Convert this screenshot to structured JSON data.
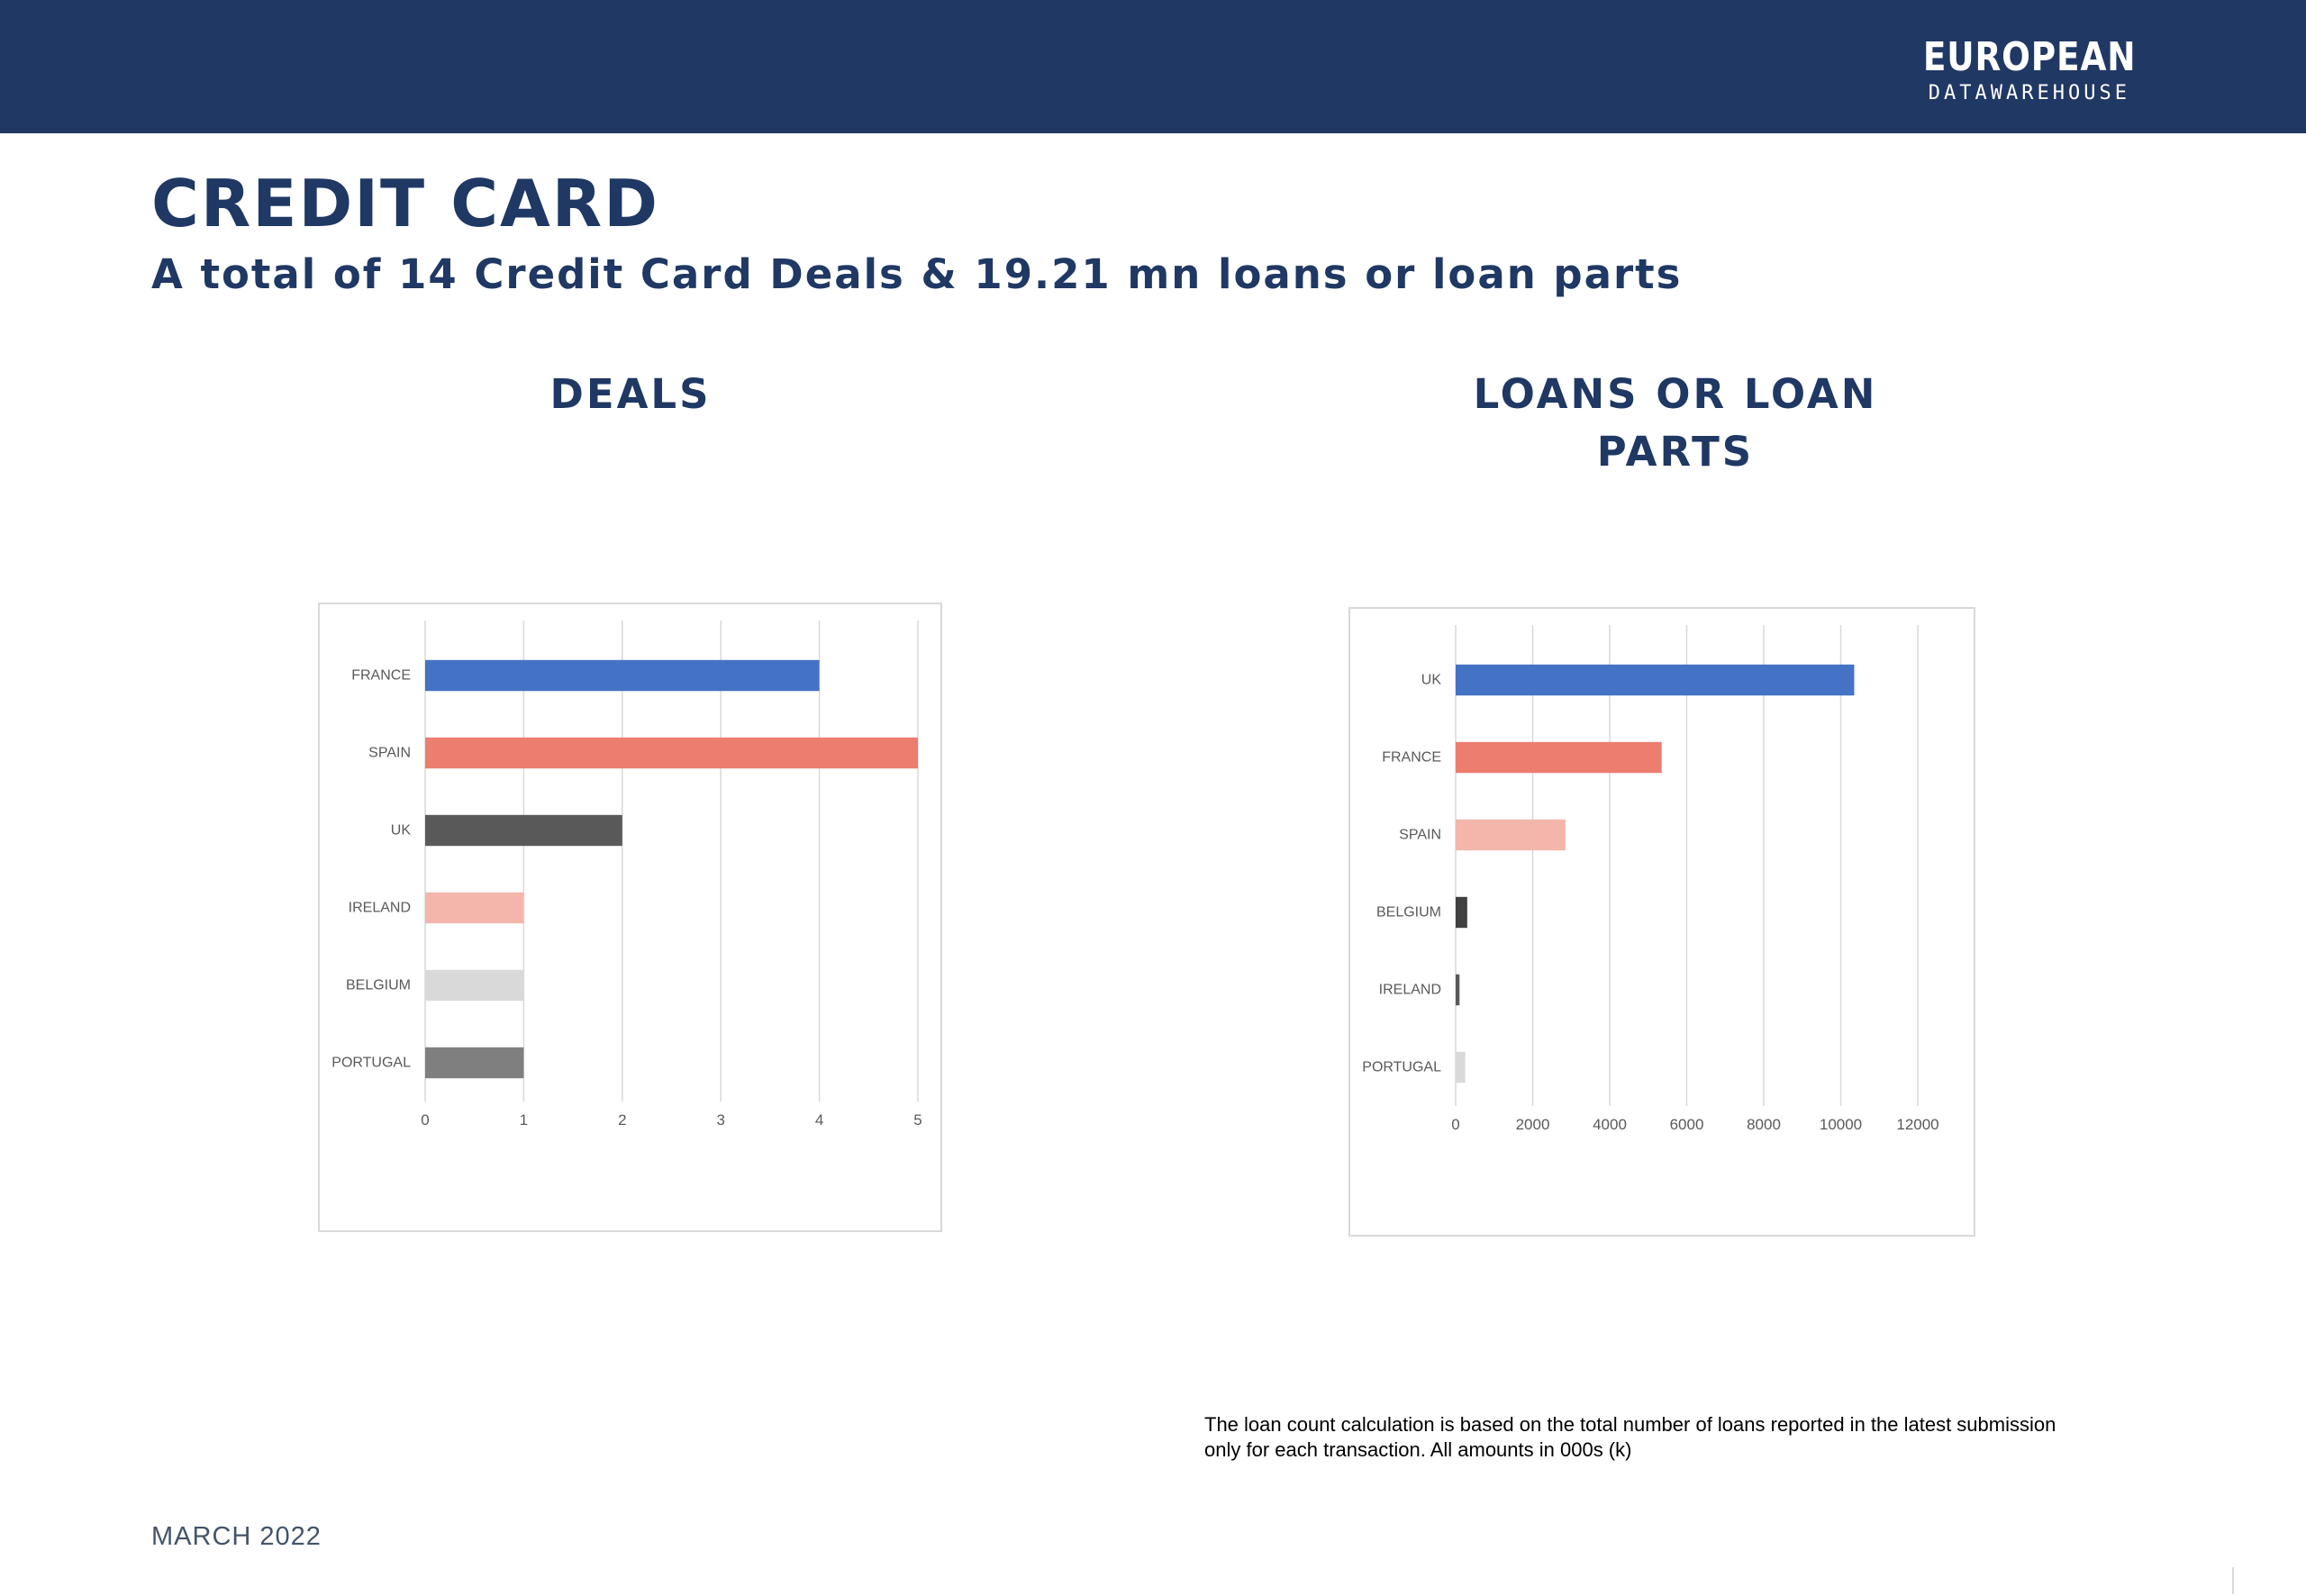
{
  "header": {
    "logo_line1": "EUROPEAN",
    "logo_line2": "DATAWAREHOUSE",
    "bar_color": "#203864"
  },
  "page": {
    "title": "CREDIT CARD",
    "summary_prefix": "A total of",
    "summary_deals_count": "14",
    "summary_middle": "Credit Card Deals &",
    "summary_loans_count": "19.21",
    "summary_suffix": "mn loans or loan parts",
    "footer_date": "MARCH 2022",
    "note": "The loan count calculation is based on the total number of loans reported in the latest submission only for each transaction. All amounts in 000s (k)"
  },
  "chart_data": [
    {
      "type": "bar",
      "orientation": "horizontal",
      "title": "DEALS",
      "categories": [
        "FRANCE",
        "SPAIN",
        "UK",
        "IRELAND",
        "BELGIUM",
        "PORTUGAL"
      ],
      "values": [
        4,
        5,
        2,
        1,
        1,
        1
      ],
      "colors": [
        "#4472c4",
        "#ed7d6f",
        "#595959",
        "#f4b6ab",
        "#d9d9d9",
        "#7f7f7f"
      ],
      "xlim": [
        0,
        5
      ],
      "xticks": [
        "0",
        "1",
        "2",
        "3",
        "4",
        "5"
      ],
      "grid": true
    },
    {
      "type": "bar",
      "orientation": "horizontal",
      "title": "LOANS OR LOAN PARTS",
      "title_lines": [
        "LOANS OR LOAN",
        "PARTS"
      ],
      "categories": [
        "UK",
        "FRANCE",
        "SPAIN",
        "BELGIUM",
        "IRELAND",
        "PORTUGAL"
      ],
      "values": [
        10350,
        5350,
        2850,
        300,
        100,
        250
      ],
      "colors": [
        "#4472c4",
        "#ed7d6f",
        "#f4b6ab",
        "#404040",
        "#595959",
        "#d9d9d9"
      ],
      "xlim": [
        0,
        12000
      ],
      "xticks": [
        "0",
        "2000",
        "4000",
        "6000",
        "8000",
        "10000",
        "12000"
      ],
      "grid": true
    }
  ]
}
